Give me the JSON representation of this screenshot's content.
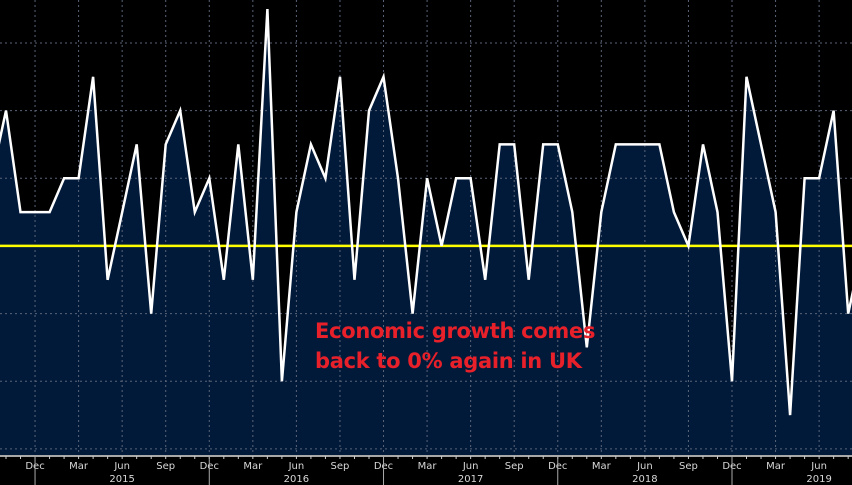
{
  "chart_data": {
    "type": "area",
    "title": "",
    "xlabel": "",
    "ylabel": "",
    "ylim": [
      -0.618,
      0.727
    ],
    "grid": true,
    "reference_line": {
      "value": 0,
      "color": "#ffff00"
    },
    "colors": {
      "line": "#ffffff",
      "fill": "#021a3a",
      "background": "#000000",
      "annotation": "#e8202a"
    },
    "x": [
      "2014-09",
      "2014-10",
      "2014-11",
      "2014-12",
      "2015-01",
      "2015-02",
      "2015-03",
      "2015-04",
      "2015-05",
      "2015-06",
      "2015-07",
      "2015-08",
      "2015-09",
      "2015-10",
      "2015-11",
      "2015-12",
      "2016-01",
      "2016-02",
      "2016-03",
      "2016-04",
      "2016-05",
      "2016-06",
      "2016-07",
      "2016-08",
      "2016-09",
      "2016-10",
      "2016-11",
      "2016-12",
      "2017-01",
      "2017-02",
      "2017-03",
      "2017-04",
      "2017-05",
      "2017-06",
      "2017-07",
      "2017-08",
      "2017-09",
      "2017-10",
      "2017-11",
      "2017-12",
      "2018-01",
      "2018-02",
      "2018-03",
      "2018-04",
      "2018-05",
      "2018-06",
      "2018-07",
      "2018-08",
      "2018-09",
      "2018-10",
      "2018-11",
      "2018-12",
      "2019-01",
      "2019-02",
      "2019-03",
      "2019-04",
      "2019-05",
      "2019-06",
      "2019-07",
      "2019-08",
      "2019-09"
    ],
    "values": [
      0.2,
      0.4,
      0.1,
      0.1,
      0.1,
      0.2,
      0.2,
      0.5,
      -0.1,
      0.1,
      0.3,
      -0.2,
      0.3,
      0.4,
      0.1,
      0.2,
      -0.1,
      0.3,
      -0.1,
      0.7,
      -0.4,
      0.1,
      0.3,
      0.2,
      0.5,
      -0.1,
      0.4,
      0.5,
      0.2,
      -0.2,
      0.2,
      0.0,
      0.2,
      0.2,
      -0.1,
      0.3,
      0.3,
      -0.1,
      0.3,
      0.3,
      0.1,
      -0.3,
      0.1,
      0.3,
      0.3,
      0.3,
      0.3,
      0.1,
      0.0,
      0.3,
      0.1,
      -0.4,
      0.5,
      0.3,
      0.1,
      -0.5,
      0.2,
      0.2,
      0.4,
      -0.2,
      0.0
    ],
    "yticks": [
      -0.6,
      -0.4,
      -0.2,
      0,
      0.2,
      0.4,
      0.6
    ],
    "x_tick_labels": [
      {
        "month": "2014-12",
        "label": "Dec"
      },
      {
        "month": "2015-03",
        "label": "Mar"
      },
      {
        "month": "2015-06",
        "label": "Jun"
      },
      {
        "month": "2015-09",
        "label": "Sep"
      },
      {
        "month": "2015-12",
        "label": "Dec"
      },
      {
        "month": "2016-03",
        "label": "Mar"
      },
      {
        "month": "2016-06",
        "label": "Jun"
      },
      {
        "month": "2016-09",
        "label": "Sep"
      },
      {
        "month": "2016-12",
        "label": "Dec"
      },
      {
        "month": "2017-03",
        "label": "Mar"
      },
      {
        "month": "2017-06",
        "label": "Jun"
      },
      {
        "month": "2017-09",
        "label": "Sep"
      },
      {
        "month": "2017-12",
        "label": "Dec"
      },
      {
        "month": "2018-03",
        "label": "Mar"
      },
      {
        "month": "2018-06",
        "label": "Jun"
      },
      {
        "month": "2018-09",
        "label": "Sep"
      },
      {
        "month": "2018-12",
        "label": "Dec"
      },
      {
        "month": "2019-03",
        "label": "Mar"
      },
      {
        "month": "2019-06",
        "label": "Jun"
      }
    ],
    "year_labels": [
      {
        "month": "2015-06",
        "label": "2015"
      },
      {
        "month": "2016-06",
        "label": "2016"
      },
      {
        "month": "2017-06",
        "label": "2017"
      },
      {
        "month": "2018-06",
        "label": "2018"
      },
      {
        "month": "2019-06",
        "label": "2019"
      }
    ],
    "annotation": {
      "line1": "Economic growth comes",
      "line2": "back to 0% again in UK"
    }
  }
}
